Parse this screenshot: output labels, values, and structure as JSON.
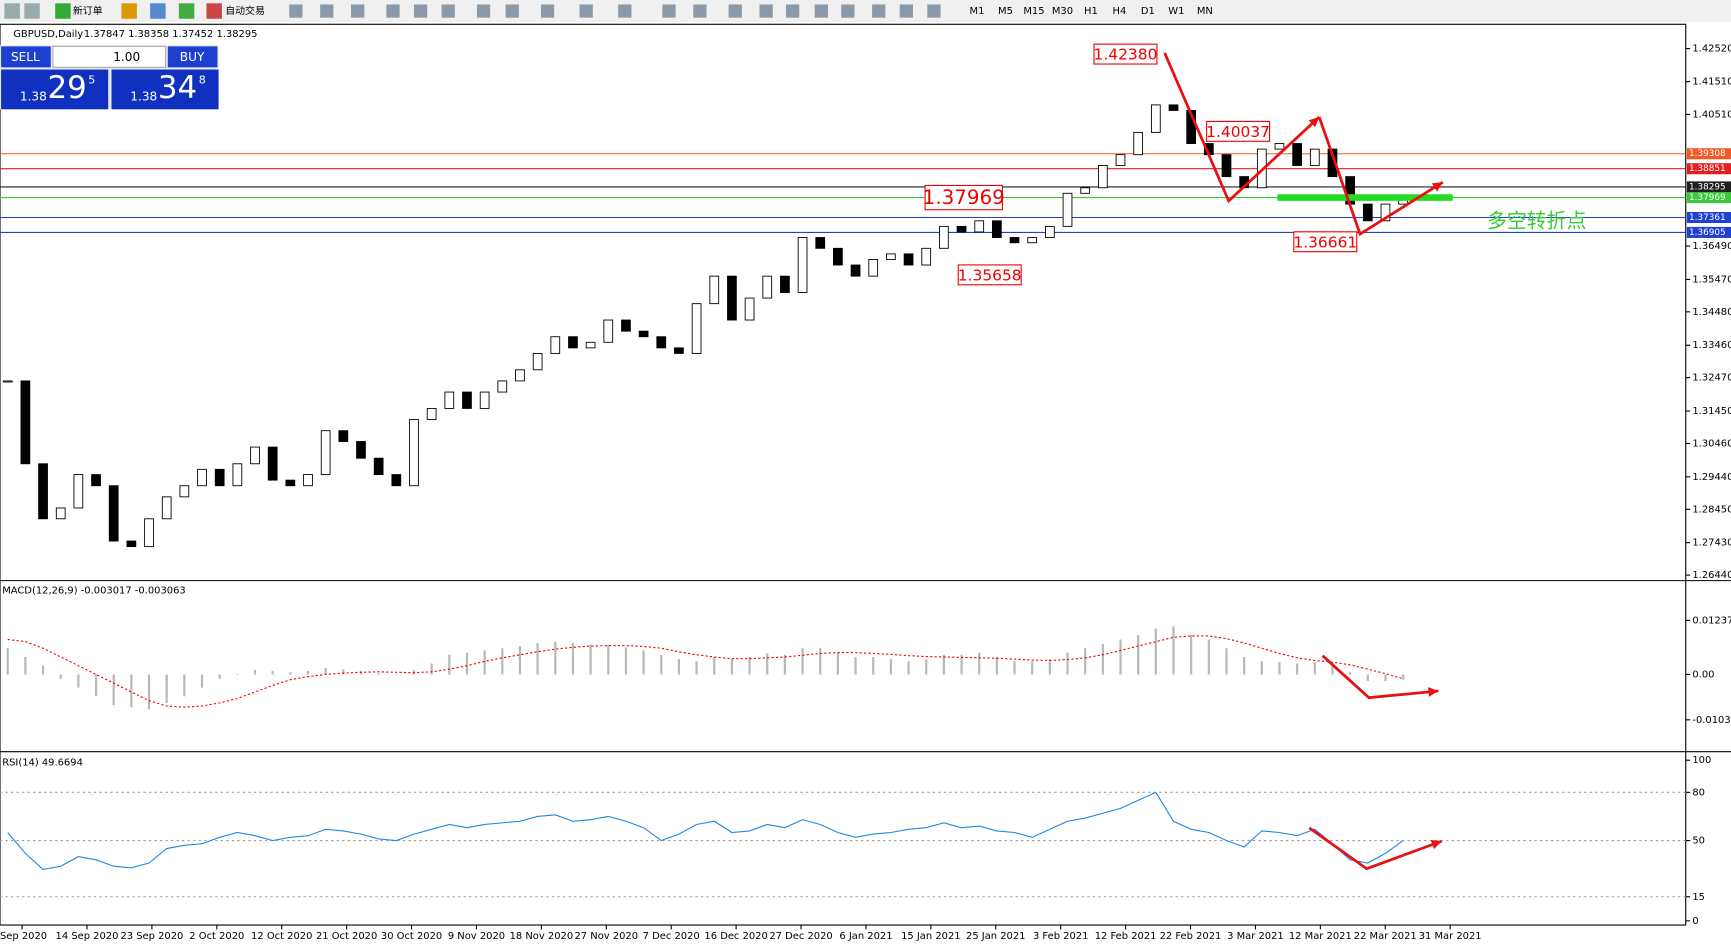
{
  "toolbar": {
    "new_order": "新订单",
    "auto_trading": "自动交易",
    "timeframes": [
      "M1",
      "M5",
      "M15",
      "M30",
      "H1",
      "H4",
      "D1",
      "W1",
      "MN"
    ]
  },
  "trade_panel": {
    "sell": "SELL",
    "buy": "BUY",
    "lot": "1.00",
    "sell_big": "1.38",
    "sell_pips": "29",
    "sell_frac": "5",
    "buy_big": "1.38",
    "buy_pips": "34",
    "buy_frac": "8"
  },
  "chart_data": {
    "type": "candlestick",
    "symbol": "GBPUSD,Daily",
    "ohlc": "1.37847 1.38358 1.37452 1.38295",
    "closes": [
      1.3237,
      1.2984,
      1.2816,
      1.2849,
      1.2951,
      1.2917,
      1.2748,
      1.2731,
      1.2816,
      1.2883,
      1.2917,
      1.2967,
      1.2917,
      1.2984,
      1.3035,
      1.2934,
      1.2917,
      1.2951,
      1.3085,
      1.3052,
      1.3001,
      1.2951,
      1.2917,
      1.3119,
      1.3153,
      1.3203,
      1.3153,
      1.3203,
      1.3237,
      1.3271,
      1.3321,
      1.3372,
      1.3338,
      1.3355,
      1.3423,
      1.3389,
      1.3372,
      1.3338,
      1.3321,
      1.3473,
      1.3557,
      1.3423,
      1.349,
      1.3557,
      1.3507,
      1.3675,
      1.3642,
      1.3591,
      1.3557,
      1.3608,
      1.3625,
      1.3591,
      1.3642,
      1.3709,
      1.3692,
      1.3726,
      1.3675,
      1.3659,
      1.3675,
      1.3709,
      1.381,
      1.3827,
      1.3895,
      1.3928,
      1.3996,
      1.408,
      1.4063,
      1.3962,
      1.3928,
      1.3861,
      1.3827,
      1.3945,
      1.3962,
      1.3895,
      1.3945,
      1.3861,
      1.3777,
      1.3726,
      1.3777,
      1.3793
    ],
    "ylim": [
      1.26305,
      1.43262
    ],
    "yticks": [
      {
        "value": 1.4252,
        "label": "1.42520"
      },
      {
        "value": 1.4151,
        "label": "1.41510"
      },
      {
        "value": 1.4051,
        "label": "1.40510"
      },
      {
        "value": 1.3649,
        "label": "1.36490"
      },
      {
        "value": 1.3547,
        "label": "1.35470"
      },
      {
        "value": 1.3448,
        "label": "1.34480"
      },
      {
        "value": 1.3346,
        "label": "1.33460"
      },
      {
        "value": 1.3247,
        "label": "1.32470"
      },
      {
        "value": 1.3145,
        "label": "1.31450"
      },
      {
        "value": 1.3046,
        "label": "1.30460"
      },
      {
        "value": 1.2944,
        "label": "1.29440"
      },
      {
        "value": 1.2845,
        "label": "1.28450"
      },
      {
        "value": 1.2743,
        "label": "1.27430"
      },
      {
        "value": 1.2644,
        "label": "1.26440"
      }
    ],
    "levels": [
      {
        "value": 1.39308,
        "color": "#f05a28"
      },
      {
        "value": 1.38851,
        "color": "#e02020"
      },
      {
        "value": 1.38295,
        "color": "#202020"
      },
      {
        "value": 1.37969,
        "color": "#3cc83c"
      },
      {
        "value": 1.37361,
        "color": "#2040d0"
      },
      {
        "value": 1.36905,
        "color": "#2040d0"
      }
    ],
    "annotations": [
      "1.42380",
      "1.40037",
      "1.37969",
      "1.35658",
      "1.36661"
    ],
    "note": "多空转折点",
    "dates": [
      "Sep 2020",
      "14 Sep 2020",
      "23 Sep 2020",
      "2 Oct 2020",
      "12 Oct 2020",
      "21 Oct 2020",
      "30 Oct 2020",
      "9 Nov 2020",
      "18 Nov 2020",
      "27 Nov 2020",
      "7 Dec 2020",
      "16 Dec 2020",
      "27 Dec 2020",
      "6 Jan 2021",
      "15 Jan 2021",
      "25 Jan 2021",
      "3 Feb 2021",
      "12 Feb 2021",
      "22 Feb 2021",
      "3 Mar 2021",
      "12 Mar 2021",
      "22 Mar 2021",
      "31 Mar 2021"
    ]
  },
  "macd": {
    "label": "MACD(12,26,9) -0.003017 -0.003063",
    "ylim": [
      -0.01742,
      0.02121
    ],
    "yticks": [
      {
        "value": 0.012372,
        "label": "0.012372"
      },
      {
        "value": 0,
        "label": "0.00"
      },
      {
        "value": -0.010374,
        "label": "-0.010374"
      }
    ],
    "histogram": [
      0.006,
      0.004,
      0.002,
      -0.001,
      -0.003,
      -0.005,
      -0.007,
      -0.0075,
      -0.008,
      -0.0065,
      -0.005,
      -0.003,
      -0.001,
      0.0,
      0.001,
      0.0008,
      0.0005,
      0.0008,
      0.0015,
      0.0012,
      0.0008,
      0.0003,
      0.0001,
      0.001,
      0.0025,
      0.0045,
      0.005,
      0.0055,
      0.006,
      0.0065,
      0.0072,
      0.0075,
      0.0072,
      0.0068,
      0.0068,
      0.0062,
      0.0055,
      0.0045,
      0.0035,
      0.003,
      0.004,
      0.0035,
      0.004,
      0.0048,
      0.0045,
      0.006,
      0.006,
      0.005,
      0.004,
      0.004,
      0.0035,
      0.003,
      0.0035,
      0.0045,
      0.0045,
      0.005,
      0.004,
      0.003,
      0.003,
      0.0035,
      0.005,
      0.006,
      0.007,
      0.008,
      0.009,
      0.0105,
      0.011,
      0.009,
      0.008,
      0.006,
      0.004,
      0.003,
      0.0028,
      0.0025,
      0.0028,
      0.002,
      0.0005,
      -0.0015,
      -0.0015,
      -0.0012
    ],
    "signal": [
      0.008,
      0.0075,
      0.006,
      0.004,
      0.002,
      0.0,
      -0.002,
      -0.004,
      -0.006,
      -0.0072,
      -0.0075,
      -0.0072,
      -0.0065,
      -0.0055,
      -0.004,
      -0.0025,
      -0.0012,
      -0.0005,
      0.0,
      0.0003,
      0.0005,
      0.0006,
      0.0005,
      0.0004,
      0.0006,
      0.0012,
      0.002,
      0.003,
      0.0038,
      0.0045,
      0.0052,
      0.0058,
      0.0062,
      0.0065,
      0.0066,
      0.0066,
      0.0064,
      0.006,
      0.0052,
      0.0045,
      0.004,
      0.0036,
      0.0036,
      0.0038,
      0.004,
      0.0044,
      0.0048,
      0.005,
      0.005,
      0.0048,
      0.0046,
      0.0043,
      0.0041,
      0.004,
      0.0039,
      0.0038,
      0.0037,
      0.0035,
      0.0033,
      0.0032,
      0.0034,
      0.0038,
      0.0045,
      0.0055,
      0.0065,
      0.0075,
      0.0085,
      0.0088,
      0.0088,
      0.0082,
      0.0072,
      0.006,
      0.0048,
      0.0038,
      0.0032,
      0.0028,
      0.0022,
      0.0012,
      0.0002,
      -0.001
    ]
  },
  "rsi": {
    "label": "RSI(14) 49.6694",
    "ylim": [
      -2.6,
      104.6
    ],
    "yticks": [
      100,
      80,
      50,
      15,
      0
    ],
    "levels": [
      80,
      50,
      15
    ],
    "values": [
      55,
      42,
      32,
      34,
      40,
      38,
      34,
      33,
      36,
      45,
      47,
      48,
      52,
      55,
      53,
      50,
      52,
      53,
      57,
      56,
      54,
      51,
      50,
      54,
      57,
      60,
      58,
      60,
      61,
      62,
      65,
      66,
      62,
      63,
      65,
      62,
      58,
      50,
      54,
      60,
      62,
      55,
      56,
      60,
      58,
      63,
      60,
      55,
      52,
      54,
      55,
      57,
      58,
      61,
      58,
      59,
      56,
      55,
      52,
      57,
      62,
      64,
      67,
      70,
      75,
      80,
      62,
      57,
      55,
      50,
      46,
      56,
      55,
      53,
      57,
      48,
      38,
      36,
      42,
      50
    ]
  }
}
